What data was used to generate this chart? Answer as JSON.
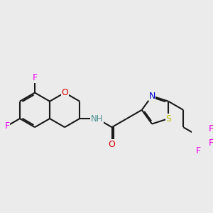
{
  "background_color": "#ebebeb",
  "atom_colors": {
    "C": "#000000",
    "H": "#4a9090",
    "N": "#0000cc",
    "O": "#dd0000",
    "F": "#ee00ee",
    "S": "#bbbb00"
  },
  "bond_color": "#1a1a1a",
  "bond_width": 1.5,
  "dbo": 0.08,
  "fs": 8.5
}
